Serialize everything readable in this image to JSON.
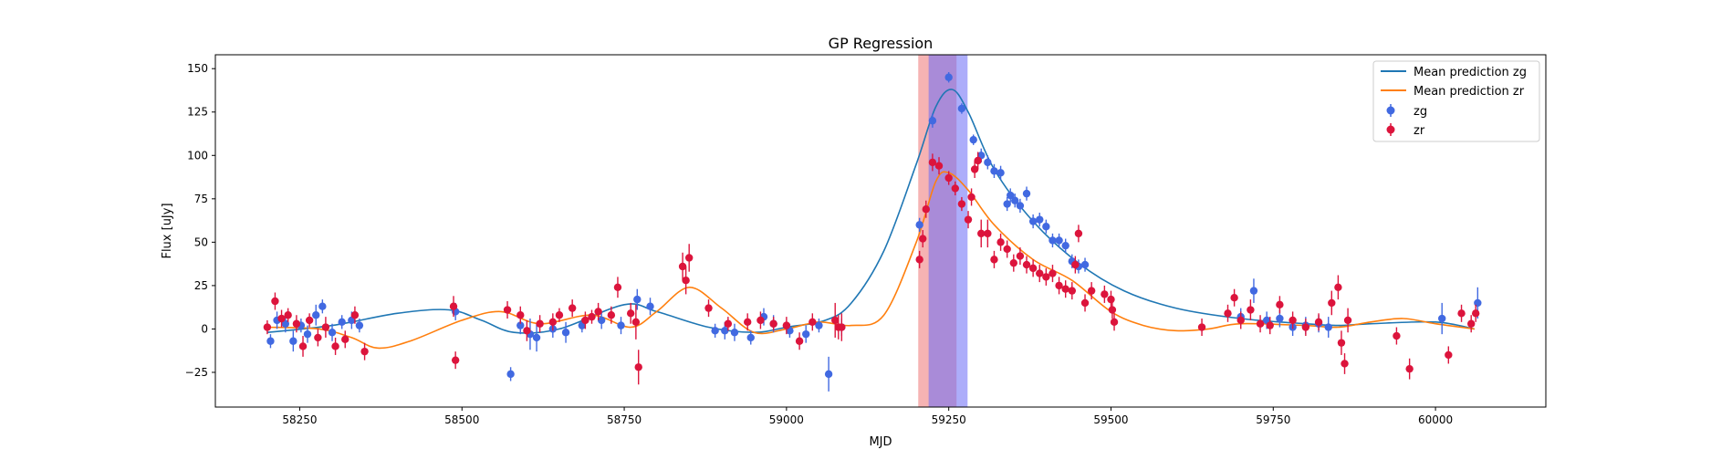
{
  "chart_data": {
    "type": "scatter",
    "title": "GP Regression",
    "xlabel": "MJD",
    "ylabel": "Flux [uJy]",
    "xlim": [
      58120,
      60170
    ],
    "ylim": [
      -45,
      158
    ],
    "xticks": [
      58250,
      58500,
      58750,
      59000,
      59250,
      59500,
      59750,
      60000
    ],
    "yticks": [
      -25,
      0,
      25,
      50,
      75,
      100,
      125,
      150
    ],
    "grid": false,
    "legend_position": "top-right",
    "legend": [
      "Mean prediction zg",
      "Mean prediction zr",
      "zg",
      "zr"
    ],
    "shaded_regions": [
      {
        "x0": 59203,
        "x1": 59262,
        "color": "#f08080",
        "alpha": 0.6
      },
      {
        "x0": 59219,
        "x1": 59279,
        "color": "#6a6af5",
        "alpha": 0.55
      }
    ],
    "series": [
      {
        "name": "Mean prediction zg",
        "kind": "line",
        "color": "#1f77b4",
        "x": [
          58200,
          58300,
          58400,
          58480,
          58530,
          58580,
          58650,
          58750,
          58800,
          58880,
          58950,
          59000,
          59060,
          59100,
          59150,
          59200,
          59230,
          59255,
          59280,
          59320,
          59380,
          59450,
          59520,
          59600,
          59700,
          59800,
          59850,
          59900,
          60000,
          60060
        ],
        "y": [
          -2,
          2,
          9,
          11,
          5,
          -2,
          0,
          14,
          10,
          1,
          -2,
          1,
          5,
          15,
          45,
          95,
          128,
          138,
          125,
          92,
          62,
          38,
          22,
          12,
          6,
          3,
          2,
          3,
          4,
          0
        ]
      },
      {
        "name": "Mean prediction zr",
        "kind": "line",
        "color": "#ff7f0e",
        "x": [
          58200,
          58280,
          58330,
          58370,
          58420,
          58500,
          58560,
          58620,
          58700,
          58760,
          58800,
          58850,
          58900,
          58950,
          59000,
          59050,
          59100,
          59150,
          59200,
          59230,
          59250,
          59280,
          59320,
          59380,
          59440,
          59500,
          59550,
          59600,
          59650,
          59700,
          59800,
          59850,
          59900,
          59950,
          60000,
          60060
        ],
        "y": [
          1,
          0,
          -5,
          -11,
          -7,
          5,
          10,
          3,
          8,
          1,
          10,
          24,
          12,
          -2,
          0,
          4,
          2,
          8,
          50,
          85,
          90,
          80,
          60,
          40,
          28,
          10,
          2,
          -1,
          0,
          3,
          2,
          1,
          4,
          6,
          3,
          0
        ]
      },
      {
        "name": "zg",
        "kind": "errorbar",
        "color": "#4169e1",
        "x": [
          58205,
          58215,
          58228,
          58240,
          58252,
          58262,
          58275,
          58285,
          58300,
          58315,
          58330,
          58342,
          58490,
          58575,
          58590,
          58605,
          58615,
          58640,
          58660,
          58685,
          58715,
          58745,
          58770,
          58790,
          58890,
          58905,
          58920,
          58945,
          58965,
          58980,
          59005,
          59030,
          59050,
          59065,
          59085,
          59205,
          59225,
          59250,
          59270,
          59288,
          59300,
          59310,
          59320,
          59330,
          59340,
          59345,
          59352,
          59360,
          59370,
          59380,
          59390,
          59400,
          59410,
          59420,
          59430,
          59440,
          59450,
          59460,
          59700,
          59720,
          59740,
          59760,
          59780,
          59800,
          59820,
          59835,
          60010,
          60065
        ],
        "y": [
          -7,
          5,
          3,
          -7,
          2,
          -3,
          8,
          13,
          -2,
          4,
          5,
          2,
          10,
          -26,
          2,
          -3,
          -5,
          0,
          -2,
          2,
          5,
          2,
          17,
          13,
          -1,
          -1,
          -2,
          -5,
          7,
          3,
          -1,
          -3,
          2,
          -26,
          1,
          60,
          120,
          145,
          127,
          109,
          100,
          96,
          91,
          90,
          72,
          77,
          74,
          71,
          78,
          62,
          63,
          59,
          51,
          51,
          48,
          39,
          36,
          37,
          7,
          22,
          5,
          6,
          1,
          2,
          3,
          1,
          6,
          15
        ],
        "yerr": [
          4,
          5,
          5,
          6,
          4,
          5,
          6,
          4,
          5,
          4,
          5,
          4,
          5,
          4,
          5,
          9,
          8,
          5,
          6,
          4,
          5,
          5,
          6,
          5,
          4,
          5,
          5,
          4,
          5,
          5,
          4,
          5,
          4,
          10,
          5,
          4,
          4,
          3,
          3,
          3,
          4,
          4,
          4,
          4,
          4,
          4,
          4,
          4,
          4,
          4,
          4,
          4,
          4,
          4,
          4,
          4,
          4,
          4,
          5,
          7,
          5,
          5,
          5,
          5,
          5,
          6,
          9,
          9
        ]
      },
      {
        "name": "zr",
        "kind": "errorbar",
        "color": "#dc143c",
        "x": [
          58200,
          58212,
          58222,
          58232,
          58245,
          58255,
          58265,
          58278,
          58290,
          58305,
          58320,
          58335,
          58350,
          58487,
          58490,
          58570,
          58590,
          58600,
          58620,
          58640,
          58650,
          58670,
          58690,
          58700,
          58710,
          58730,
          58740,
          58760,
          58768,
          58772,
          58840,
          58845,
          58850,
          58880,
          58910,
          58940,
          58960,
          58980,
          59000,
          59020,
          59040,
          59075,
          59080,
          59085,
          59205,
          59210,
          59215,
          59225,
          59235,
          59250,
          59260,
          59270,
          59280,
          59285,
          59290,
          59295,
          59300,
          59310,
          59320,
          59330,
          59340,
          59350,
          59360,
          59370,
          59380,
          59390,
          59400,
          59410,
          59420,
          59430,
          59440,
          59445,
          59450,
          59460,
          59470,
          59490,
          59500,
          59502,
          59505,
          59640,
          59680,
          59690,
          59700,
          59715,
          59730,
          59745,
          59760,
          59780,
          59800,
          59820,
          59840,
          59850,
          59855,
          59860,
          59865,
          59940,
          59960,
          60020,
          60040,
          60055,
          60062
        ],
        "y": [
          1,
          16,
          6,
          8,
          3,
          -10,
          5,
          -5,
          1,
          -10,
          -6,
          8,
          -13,
          13,
          -18,
          11,
          8,
          -1,
          3,
          4,
          8,
          12,
          5,
          7,
          10,
          8,
          24,
          9,
          4,
          -22,
          36,
          28,
          41,
          12,
          3,
          4,
          5,
          3,
          2,
          -7,
          4,
          5,
          1,
          1,
          40,
          52,
          69,
          96,
          94,
          87,
          81,
          72,
          63,
          76,
          92,
          97,
          55,
          55,
          40,
          50,
          46,
          38,
          42,
          37,
          35,
          32,
          30,
          32,
          25,
          23,
          22,
          37,
          55,
          15,
          22,
          20,
          17,
          11,
          4,
          1,
          9,
          18,
          5,
          11,
          3,
          2,
          14,
          5,
          1,
          4,
          15,
          24,
          -8,
          -20,
          5,
          -4,
          -23,
          -15,
          9,
          3,
          9
        ],
        "yerr": [
          4,
          5,
          5,
          4,
          5,
          6,
          4,
          5,
          6,
          5,
          5,
          5,
          5,
          6,
          5,
          5,
          5,
          6,
          5,
          5,
          4,
          5,
          5,
          4,
          5,
          5,
          6,
          6,
          10,
          10,
          8,
          8,
          8,
          5,
          4,
          5,
          5,
          4,
          5,
          5,
          5,
          10,
          7,
          8,
          5,
          5,
          5,
          5,
          5,
          4,
          4,
          4,
          5,
          5,
          5,
          5,
          8,
          8,
          5,
          5,
          5,
          5,
          5,
          5,
          5,
          5,
          5,
          5,
          5,
          5,
          5,
          5,
          5,
          5,
          5,
          5,
          5,
          5,
          5,
          5,
          5,
          5,
          5,
          6,
          5,
          5,
          5,
          5,
          5,
          5,
          7,
          7,
          7,
          6,
          7,
          5,
          6,
          5,
          5,
          5,
          5
        ]
      }
    ]
  }
}
